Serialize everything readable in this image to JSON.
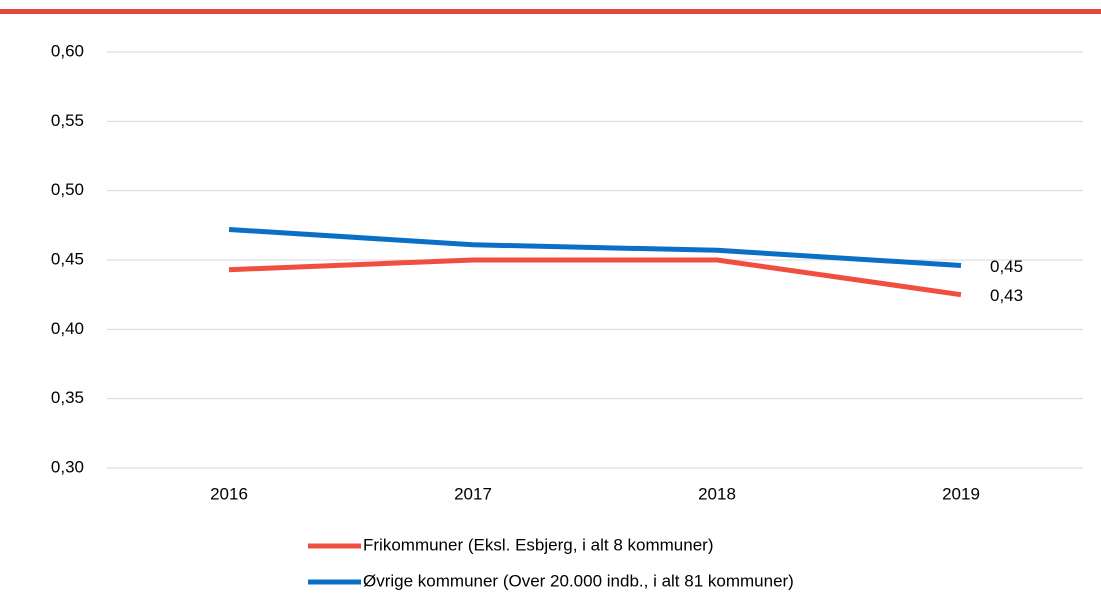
{
  "chart_data": {
    "type": "line",
    "categories": [
      "2016",
      "2017",
      "2018",
      "2019"
    ],
    "series": [
      {
        "name": "Frikommuner (Eksl. Esbjerg, i alt 8 kommuner)",
        "color": "#f04e3e",
        "values": [
          0.443,
          0.45,
          0.45,
          0.425
        ],
        "value_labels": [
          null,
          null,
          null,
          "0,43"
        ]
      },
      {
        "name": "Øvrige kommuner (Over 20.000 indb., i alt 81 kommuner)",
        "color": "#0a70c6",
        "values": [
          0.472,
          0.461,
          0.457,
          0.446
        ],
        "value_labels": [
          null,
          null,
          null,
          "0,45"
        ]
      }
    ],
    "ylim": [
      0.3,
      0.6
    ],
    "yticks": [
      {
        "value": 0.3,
        "label": "0,30"
      },
      {
        "value": 0.35,
        "label": "0,35"
      },
      {
        "value": 0.4,
        "label": "0,40"
      },
      {
        "value": 0.45,
        "label": "0,45"
      },
      {
        "value": 0.5,
        "label": "0,50"
      },
      {
        "value": 0.55,
        "label": "0,55"
      },
      {
        "value": 0.6,
        "label": "0,60"
      }
    ],
    "grid": true
  }
}
